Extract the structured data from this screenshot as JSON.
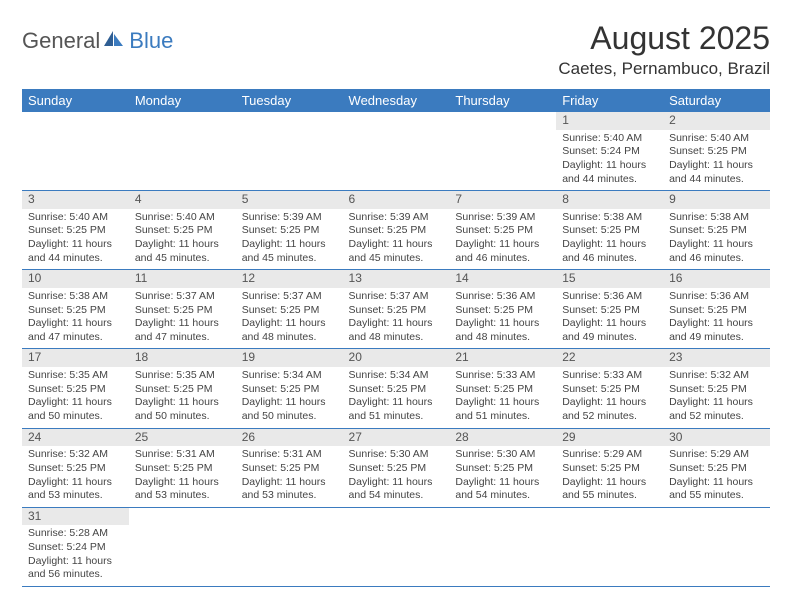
{
  "logo": {
    "part1": "General",
    "part2": "Blue"
  },
  "title": "August 2025",
  "location": "Caetes, Pernambuco, Brazil",
  "colors": {
    "header_bg": "#3b7bbf",
    "header_text": "#ffffff",
    "daynum_bg": "#e9e9e9",
    "border": "#3b7bbf",
    "text": "#444444"
  },
  "day_headers": [
    "Sunday",
    "Monday",
    "Tuesday",
    "Wednesday",
    "Thursday",
    "Friday",
    "Saturday"
  ],
  "weeks": [
    [
      null,
      null,
      null,
      null,
      null,
      {
        "n": "1",
        "sr": "5:40 AM",
        "ss": "5:24 PM",
        "dl": "11 hours and 44 minutes."
      },
      {
        "n": "2",
        "sr": "5:40 AM",
        "ss": "5:25 PM",
        "dl": "11 hours and 44 minutes."
      }
    ],
    [
      {
        "n": "3",
        "sr": "5:40 AM",
        "ss": "5:25 PM",
        "dl": "11 hours and 44 minutes."
      },
      {
        "n": "4",
        "sr": "5:40 AM",
        "ss": "5:25 PM",
        "dl": "11 hours and 45 minutes."
      },
      {
        "n": "5",
        "sr": "5:39 AM",
        "ss": "5:25 PM",
        "dl": "11 hours and 45 minutes."
      },
      {
        "n": "6",
        "sr": "5:39 AM",
        "ss": "5:25 PM",
        "dl": "11 hours and 45 minutes."
      },
      {
        "n": "7",
        "sr": "5:39 AM",
        "ss": "5:25 PM",
        "dl": "11 hours and 46 minutes."
      },
      {
        "n": "8",
        "sr": "5:38 AM",
        "ss": "5:25 PM",
        "dl": "11 hours and 46 minutes."
      },
      {
        "n": "9",
        "sr": "5:38 AM",
        "ss": "5:25 PM",
        "dl": "11 hours and 46 minutes."
      }
    ],
    [
      {
        "n": "10",
        "sr": "5:38 AM",
        "ss": "5:25 PM",
        "dl": "11 hours and 47 minutes."
      },
      {
        "n": "11",
        "sr": "5:37 AM",
        "ss": "5:25 PM",
        "dl": "11 hours and 47 minutes."
      },
      {
        "n": "12",
        "sr": "5:37 AM",
        "ss": "5:25 PM",
        "dl": "11 hours and 48 minutes."
      },
      {
        "n": "13",
        "sr": "5:37 AM",
        "ss": "5:25 PM",
        "dl": "11 hours and 48 minutes."
      },
      {
        "n": "14",
        "sr": "5:36 AM",
        "ss": "5:25 PM",
        "dl": "11 hours and 48 minutes."
      },
      {
        "n": "15",
        "sr": "5:36 AM",
        "ss": "5:25 PM",
        "dl": "11 hours and 49 minutes."
      },
      {
        "n": "16",
        "sr": "5:36 AM",
        "ss": "5:25 PM",
        "dl": "11 hours and 49 minutes."
      }
    ],
    [
      {
        "n": "17",
        "sr": "5:35 AM",
        "ss": "5:25 PM",
        "dl": "11 hours and 50 minutes."
      },
      {
        "n": "18",
        "sr": "5:35 AM",
        "ss": "5:25 PM",
        "dl": "11 hours and 50 minutes."
      },
      {
        "n": "19",
        "sr": "5:34 AM",
        "ss": "5:25 PM",
        "dl": "11 hours and 50 minutes."
      },
      {
        "n": "20",
        "sr": "5:34 AM",
        "ss": "5:25 PM",
        "dl": "11 hours and 51 minutes."
      },
      {
        "n": "21",
        "sr": "5:33 AM",
        "ss": "5:25 PM",
        "dl": "11 hours and 51 minutes."
      },
      {
        "n": "22",
        "sr": "5:33 AM",
        "ss": "5:25 PM",
        "dl": "11 hours and 52 minutes."
      },
      {
        "n": "23",
        "sr": "5:32 AM",
        "ss": "5:25 PM",
        "dl": "11 hours and 52 minutes."
      }
    ],
    [
      {
        "n": "24",
        "sr": "5:32 AM",
        "ss": "5:25 PM",
        "dl": "11 hours and 53 minutes."
      },
      {
        "n": "25",
        "sr": "5:31 AM",
        "ss": "5:25 PM",
        "dl": "11 hours and 53 minutes."
      },
      {
        "n": "26",
        "sr": "5:31 AM",
        "ss": "5:25 PM",
        "dl": "11 hours and 53 minutes."
      },
      {
        "n": "27",
        "sr": "5:30 AM",
        "ss": "5:25 PM",
        "dl": "11 hours and 54 minutes."
      },
      {
        "n": "28",
        "sr": "5:30 AM",
        "ss": "5:25 PM",
        "dl": "11 hours and 54 minutes."
      },
      {
        "n": "29",
        "sr": "5:29 AM",
        "ss": "5:25 PM",
        "dl": "11 hours and 55 minutes."
      },
      {
        "n": "30",
        "sr": "5:29 AM",
        "ss": "5:25 PM",
        "dl": "11 hours and 55 minutes."
      }
    ],
    [
      {
        "n": "31",
        "sr": "5:28 AM",
        "ss": "5:24 PM",
        "dl": "11 hours and 56 minutes."
      },
      null,
      null,
      null,
      null,
      null,
      null
    ]
  ],
  "labels": {
    "sunrise": "Sunrise:",
    "sunset": "Sunset:",
    "daylight": "Daylight:"
  }
}
